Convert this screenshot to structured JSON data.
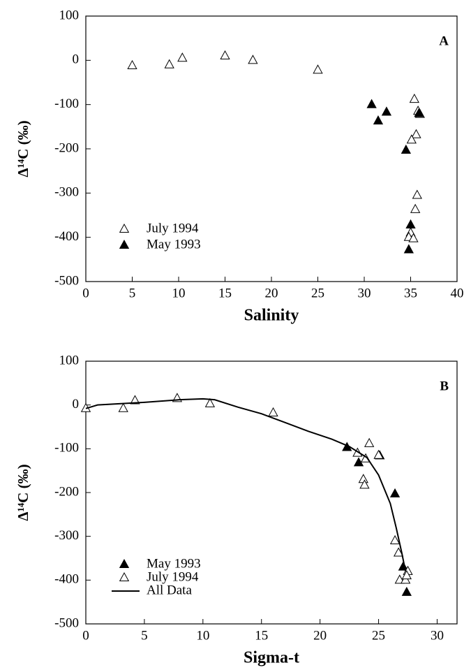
{
  "chart_data": [
    {
      "type": "scatter",
      "annotation": "A",
      "xlabel": "Salinity",
      "ylabel": "Δ¹⁴C (‰)",
      "xlim": [
        0,
        40
      ],
      "xticks": [
        0,
        5,
        10,
        15,
        20,
        25,
        30,
        35,
        40
      ],
      "ylim": [
        -500,
        100
      ],
      "yticks": [
        100,
        0,
        -100,
        -200,
        -300,
        -400,
        -500
      ],
      "legend": "lower left",
      "series": [
        {
          "name": "July 1994",
          "marker": "open-triangle",
          "color": "#000000",
          "x": [
            5,
            9,
            10.4,
            15,
            18,
            25,
            35.4,
            35.8,
            36,
            35.6,
            35.1,
            35.7,
            35.5,
            35,
            34.8,
            35.3
          ],
          "values": [
            -12,
            -10,
            5,
            10,
            0,
            -22,
            -88,
            -115,
            -122,
            -168,
            -180,
            -305,
            -337,
            -390,
            -400,
            -403
          ]
        },
        {
          "name": "May 1993",
          "marker": "filled-triangle",
          "color": "#000000",
          "x": [
            30.8,
            31.5,
            32.4,
            34.5,
            35,
            34.8,
            35.9
          ],
          "values": [
            -100,
            -137,
            -117,
            -203,
            -372,
            -428,
            -120
          ]
        }
      ]
    },
    {
      "type": "scatter",
      "annotation": "B",
      "xlabel": "Sigma-t",
      "ylabel": "Δ¹⁴C (‰)",
      "xlim": [
        0,
        31.7
      ],
      "xticks": [
        0,
        5,
        10,
        15,
        20,
        25,
        30
      ],
      "ylim": [
        -500,
        100
      ],
      "yticks": [
        100,
        0,
        -100,
        -200,
        -300,
        -400,
        -500
      ],
      "legend": "lower left",
      "series": [
        {
          "name": "May 1993",
          "marker": "filled-triangle",
          "color": "#000000",
          "x": [
            22.3,
            23.3,
            25.1,
            26.4,
            27.1,
            27.4
          ],
          "values": [
            -97,
            -132,
            -116,
            -203,
            -370,
            -428
          ]
        },
        {
          "name": "July 1994",
          "marker": "open-triangle",
          "color": "#000000",
          "x": [
            0,
            3.2,
            4.2,
            7.8,
            10.6,
            16,
            23.2,
            24.2,
            23.7,
            23.8,
            23.9,
            25,
            26.4,
            26.7,
            26.8,
            27.5,
            27.3,
            27.4
          ],
          "values": [
            -8,
            -8,
            10,
            15,
            3,
            -18,
            -110,
            -88,
            -170,
            -183,
            -123,
            -115,
            -310,
            -338,
            -400,
            -380,
            -400,
            -390
          ]
        },
        {
          "name": "All Data",
          "marker": "line",
          "color": "#000000",
          "x": [
            0,
            1,
            3,
            5,
            8,
            10,
            11,
            13,
            15,
            17,
            19,
            21,
            22.5,
            24,
            25,
            26,
            26.5,
            27,
            27.3
          ],
          "values": [
            -8,
            0,
            3,
            6,
            12,
            14,
            12,
            -5,
            -20,
            -40,
            -60,
            -78,
            -95,
            -120,
            -160,
            -225,
            -280,
            -340,
            -380
          ]
        }
      ]
    }
  ]
}
